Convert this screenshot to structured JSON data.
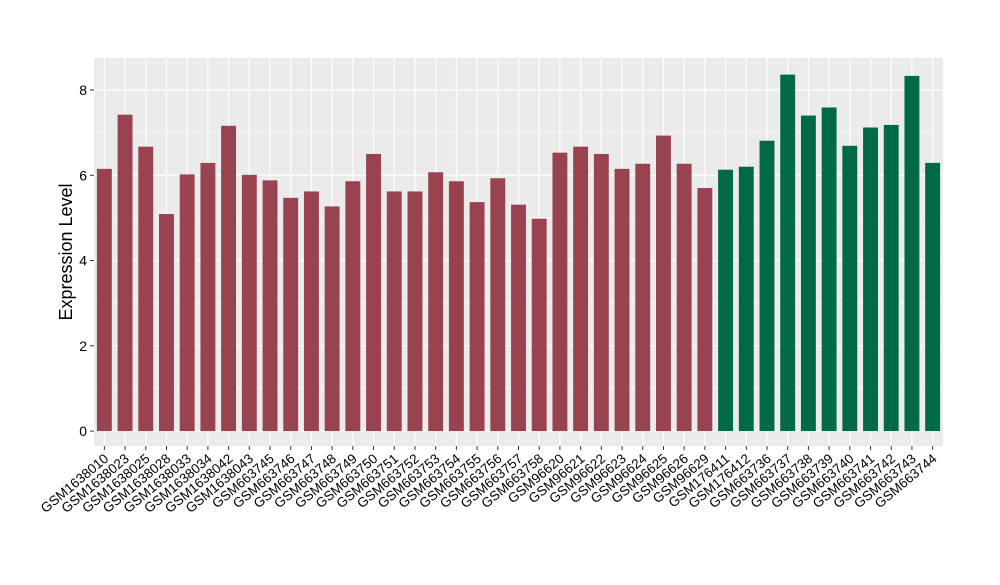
{
  "chart_data": {
    "type": "bar",
    "ylabel": "Expression Level",
    "xlabel": "",
    "ylim": [
      -0.35,
      8.75
    ],
    "yticks": [
      0,
      2,
      4,
      6,
      8
    ],
    "grid": true,
    "legend": "none",
    "colors": {
      "group1": "#9a4350",
      "group2": "#006a48",
      "panel": "#ebebeb",
      "grid": "#ffffff"
    },
    "categories": [
      "GSM1638010",
      "GSM1638023",
      "GSM1638025",
      "GSM1638028",
      "GSM1638033",
      "GSM1638034",
      "GSM1638042",
      "GSM1638043",
      "GSM663745",
      "GSM663746",
      "GSM663747",
      "GSM663748",
      "GSM663749",
      "GSM663750",
      "GSM663751",
      "GSM663752",
      "GSM663753",
      "GSM663754",
      "GSM663755",
      "GSM663756",
      "GSM663757",
      "GSM663758",
      "GSM96620",
      "GSM96621",
      "GSM96622",
      "GSM96623",
      "GSM96624",
      "GSM96625",
      "GSM96626",
      "GSM96629",
      "GSM176411",
      "GSM176412",
      "GSM663736",
      "GSM663737",
      "GSM663738",
      "GSM663739",
      "GSM663740",
      "GSM663741",
      "GSM663742",
      "GSM663743",
      "GSM663744"
    ],
    "values": [
      6.15,
      7.42,
      6.67,
      5.09,
      6.02,
      6.29,
      7.16,
      6.01,
      5.88,
      5.47,
      5.62,
      5.27,
      5.86,
      6.5,
      5.62,
      5.62,
      6.07,
      5.86,
      5.37,
      5.93,
      5.31,
      4.98,
      6.53,
      6.67,
      6.5,
      6.15,
      6.27,
      6.93,
      6.27,
      5.7,
      6.13,
      6.2,
      6.81,
      8.36,
      7.4,
      7.59,
      6.69,
      7.12,
      7.18,
      8.33,
      6.29
    ],
    "groups": [
      1,
      1,
      1,
      1,
      1,
      1,
      1,
      1,
      1,
      1,
      1,
      1,
      1,
      1,
      1,
      1,
      1,
      1,
      1,
      1,
      1,
      1,
      1,
      1,
      1,
      1,
      1,
      1,
      1,
      1,
      2,
      2,
      2,
      2,
      2,
      2,
      2,
      2,
      2,
      2,
      2
    ]
  }
}
